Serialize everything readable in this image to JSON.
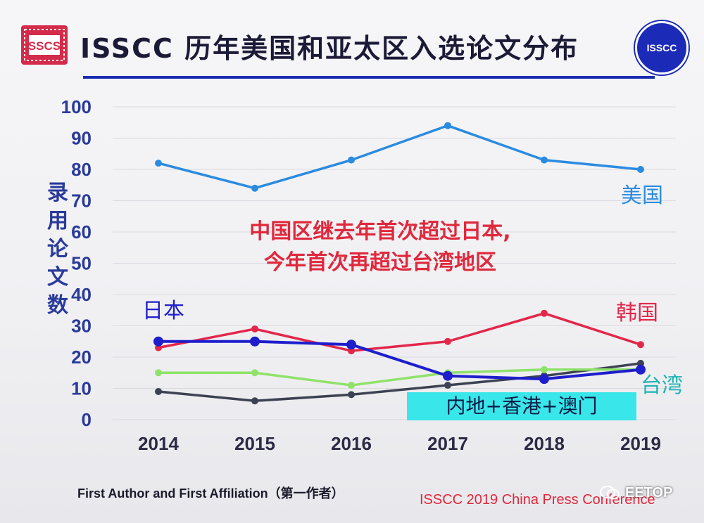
{
  "header": {
    "title": "ISSCC 历年美国和亚太区入选论文分布",
    "logo_left_text": "SSCS",
    "logo_right_text": "ISSCC"
  },
  "annotation": {
    "line1": "中国区继去年首次超过日本,",
    "line2": "今年首次再超过台湾地区"
  },
  "footer": {
    "left": "First Author and First Affiliation（第一作者）",
    "right": "ISSCC 2019 China Press Conference",
    "watermark": "EETOP"
  },
  "colors": {
    "usa": "#2b8be0",
    "japan": "#1e1ecc",
    "korea": "#e2274a",
    "taiwan": "#8fe26a",
    "china": "#3d4252",
    "axis_text": "#2a3a9a",
    "region_box": "#39e6ea"
  },
  "chart_data": {
    "type": "line",
    "title": "ISSCC 历年美国和亚太区入选论文分布",
    "ylabel": "录用论文数",
    "xlabel": "",
    "x": [
      "2014",
      "2015",
      "2016",
      "2017",
      "2018",
      "2019"
    ],
    "ylim": [
      0,
      100
    ],
    "yticks": [
      0,
      10,
      20,
      30,
      40,
      50,
      60,
      70,
      80,
      90,
      100
    ],
    "grid": true,
    "series": [
      {
        "name": "美国",
        "color": "#2b8be0",
        "values": [
          82,
          74,
          83,
          94,
          83,
          80
        ]
      },
      {
        "name": "日本",
        "color": "#1e1ecc",
        "values": [
          25,
          25,
          24,
          14,
          13,
          16
        ]
      },
      {
        "name": "韩国",
        "color": "#e2274a",
        "values": [
          23,
          29,
          22,
          25,
          34,
          24
        ]
      },
      {
        "name": "台湾",
        "color": "#8fe26a",
        "values": [
          15,
          15,
          11,
          15,
          16,
          16
        ]
      },
      {
        "name": "内地+香港+澳门",
        "color": "#3d4252",
        "values": [
          9,
          6,
          8,
          11,
          14,
          18
        ]
      }
    ],
    "series_labels": {
      "美国": "美国",
      "日本": "日本",
      "韩国": "韩国",
      "台湾": "台湾",
      "内地+香港+澳门": "内地+香港+澳门"
    }
  }
}
